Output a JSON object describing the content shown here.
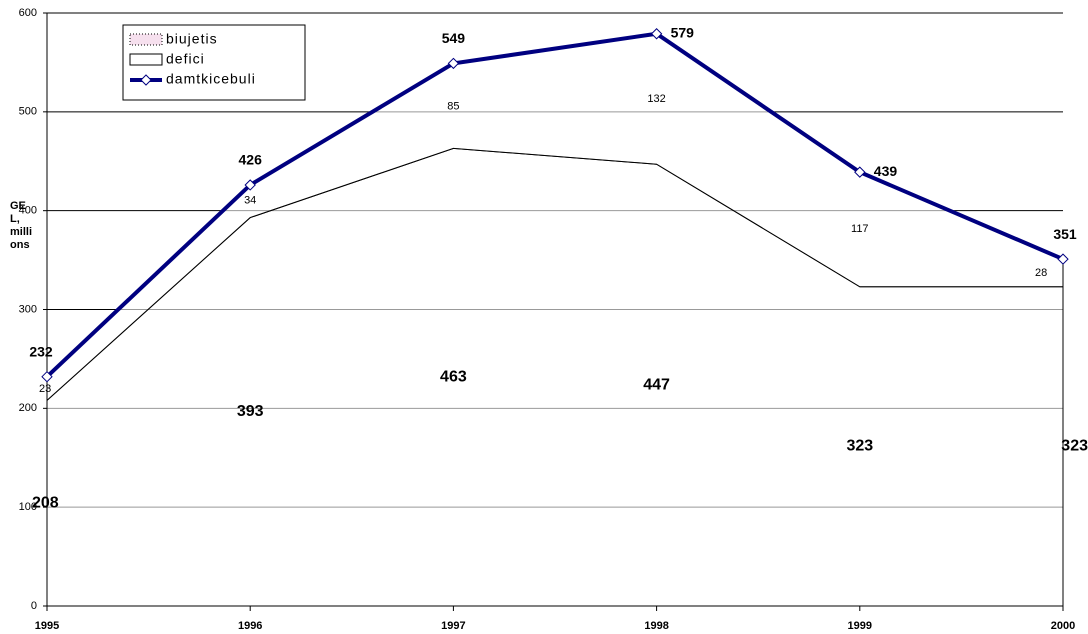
{
  "chart_data": {
    "type": "area",
    "y_label": "GEL, millions",
    "categories": [
      "1995",
      "1996",
      "1997",
      "1998",
      "1999",
      "2000"
    ],
    "series": [
      {
        "name": "biujetis",
        "type": "area",
        "color": "#ffffff",
        "values": [
          208,
          393,
          463,
          447,
          323,
          323
        ]
      },
      {
        "name": "defici",
        "type": "area",
        "color": "#ffffff",
        "values": [
          23,
          34,
          85,
          132,
          117,
          28
        ]
      },
      {
        "name": "damtkicebuli",
        "type": "line",
        "color": "#000080",
        "values": [
          232,
          426,
          549,
          579,
          439,
          351
        ]
      }
    ],
    "stacked": true,
    "ylim": [
      0,
      600
    ],
    "yticks": [
      0,
      100,
      200,
      300,
      400,
      500,
      600
    ],
    "grid": true,
    "legend": "top-left"
  }
}
